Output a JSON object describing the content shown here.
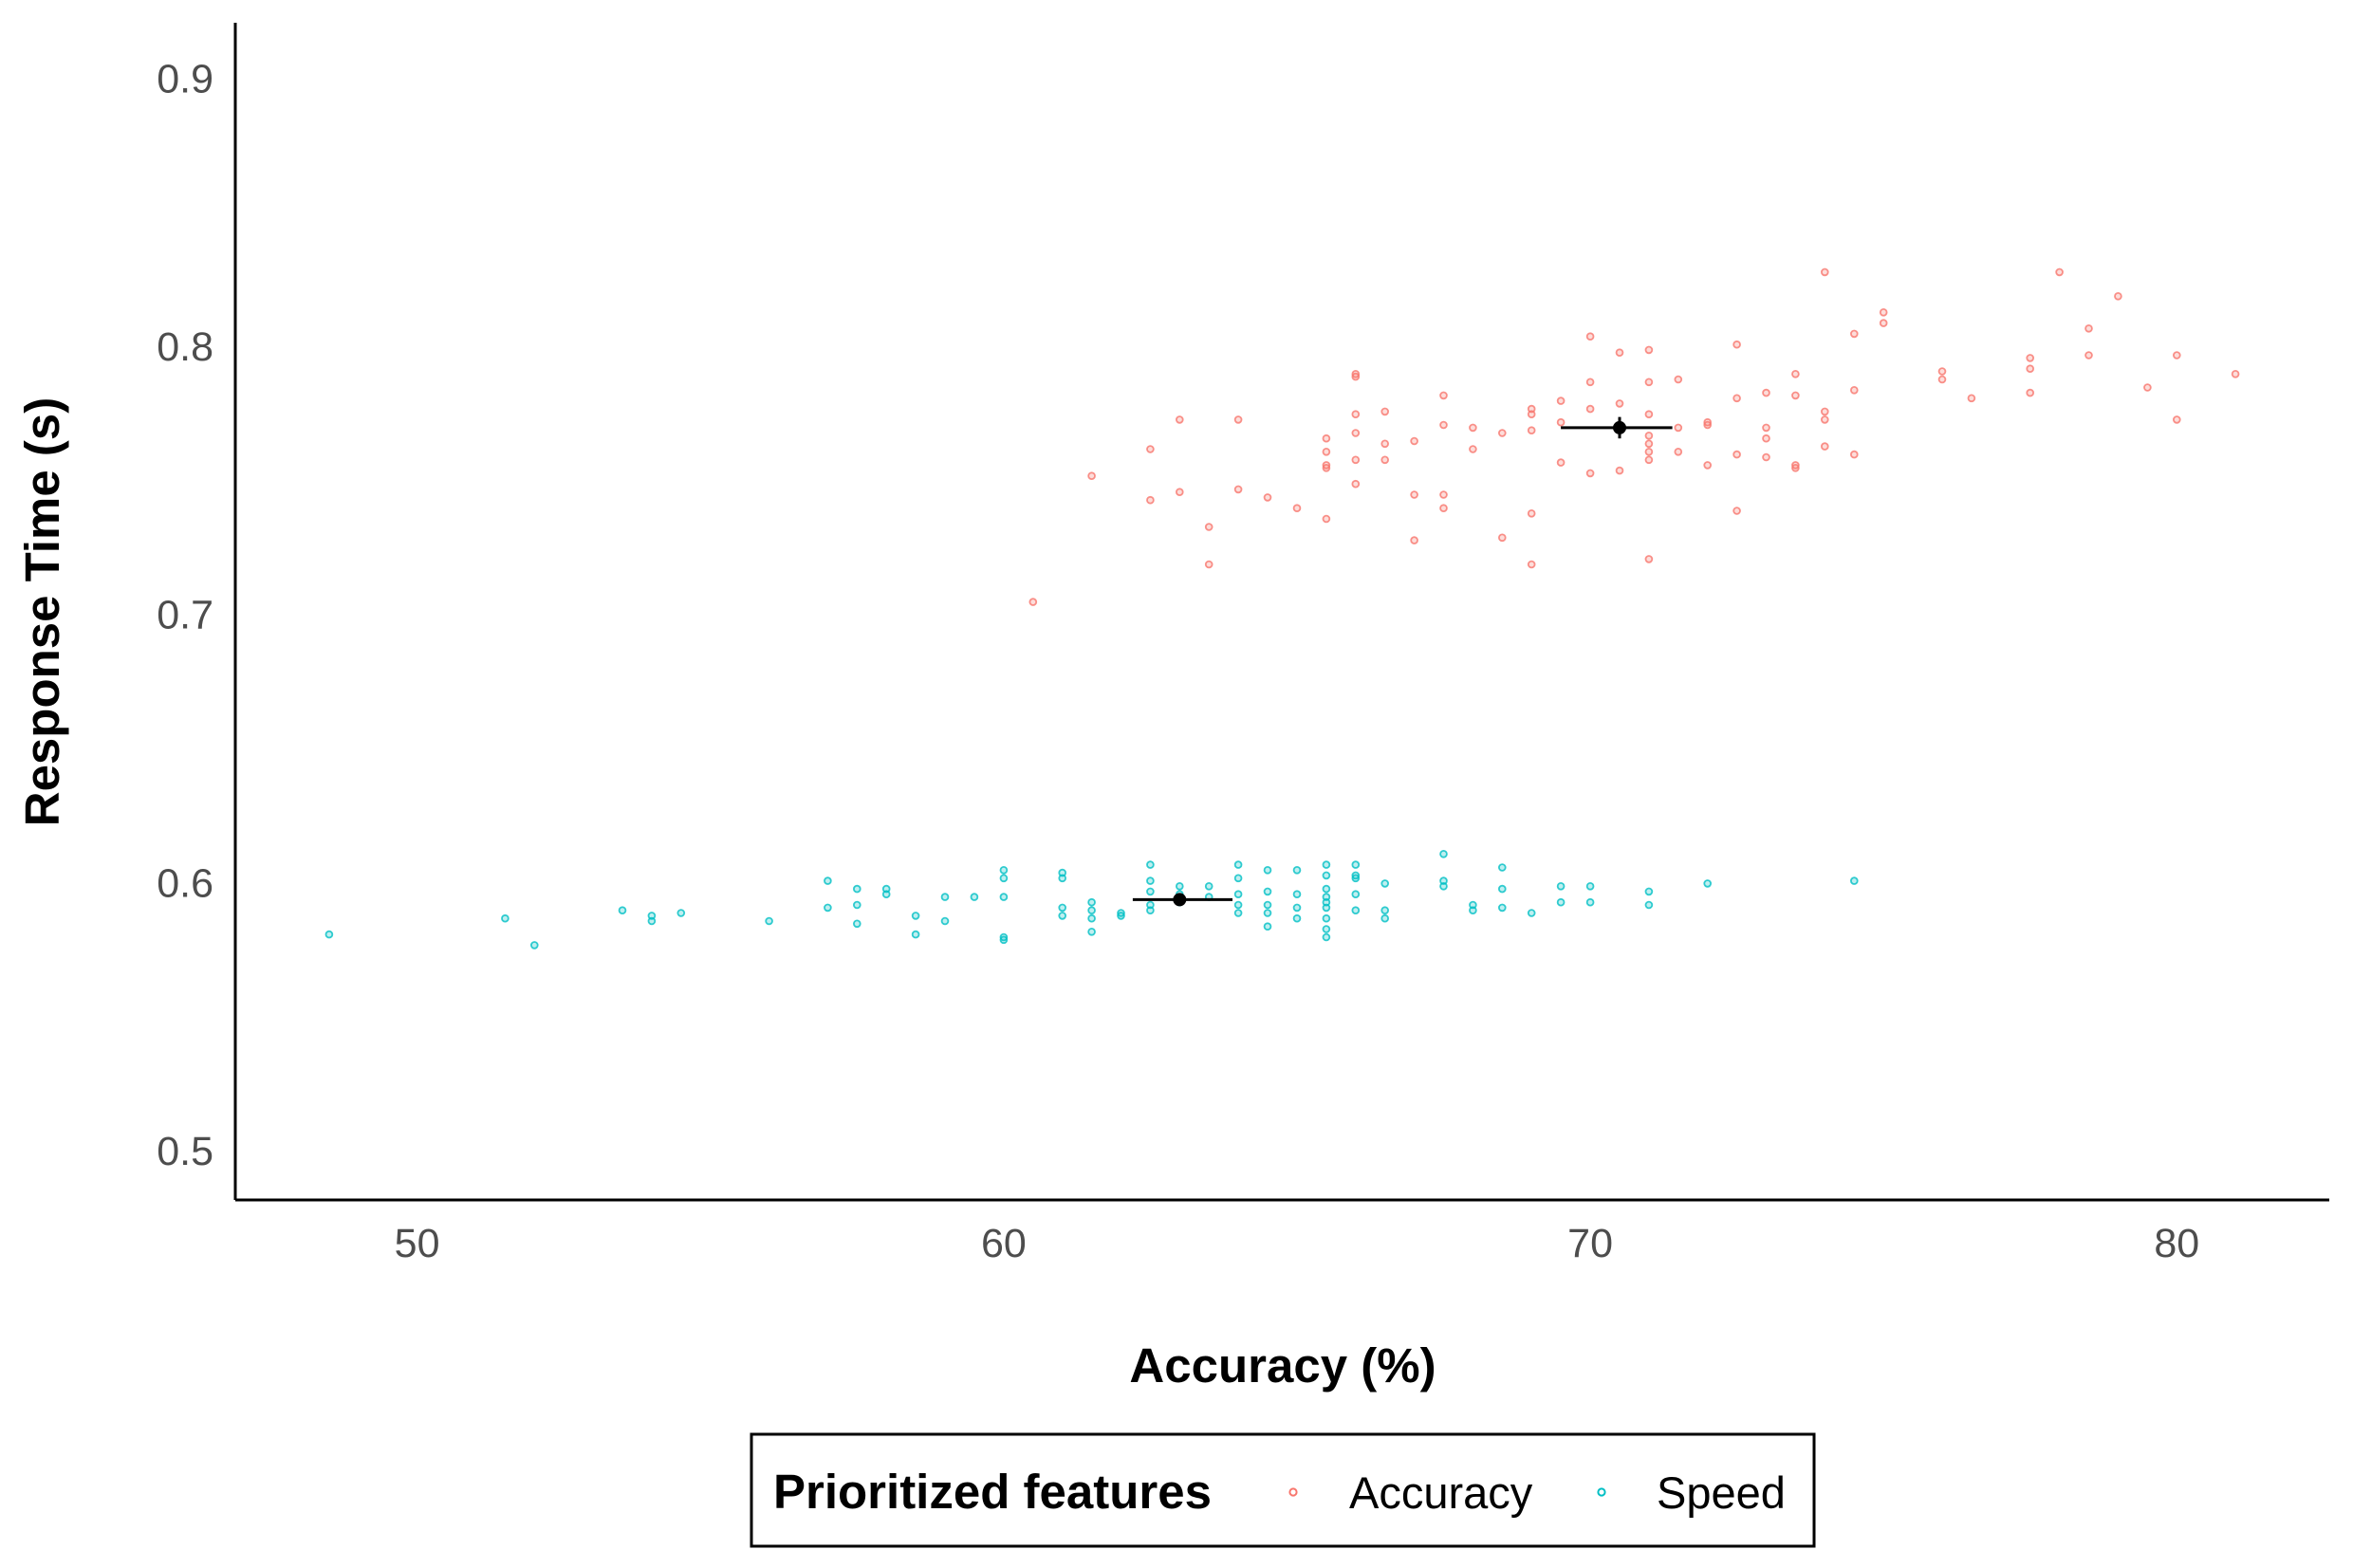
{
  "chart_data": {
    "type": "scatter",
    "xlabel": "Accuracy (%)",
    "ylabel": "Response Time (s)",
    "xlim": [
      46.9,
      82.6
    ],
    "ylim": [
      0.482,
      0.921
    ],
    "x_ticks": [
      50,
      60,
      70,
      80
    ],
    "y_ticks": [
      0.5,
      0.6,
      0.7,
      0.8,
      0.9
    ],
    "x_tick_labels": [
      "50",
      "60",
      "70",
      "80"
    ],
    "y_tick_labels": [
      "0.5",
      "0.6",
      "0.7",
      "0.8",
      "0.9"
    ],
    "grid": false,
    "legend": {
      "title": "Prioritized features",
      "placement": "bottom",
      "entries": [
        "Accuracy",
        "Speed"
      ]
    },
    "series": [
      {
        "name": "Accuracy",
        "color": "#F8766D",
        "points": [
          [
            60.5,
            0.705
          ],
          [
            61.5,
            0.752
          ],
          [
            62.5,
            0.762
          ],
          [
            62.5,
            0.743
          ],
          [
            63.0,
            0.773
          ],
          [
            63.0,
            0.746
          ],
          [
            63.5,
            0.733
          ],
          [
            63.5,
            0.719
          ],
          [
            64.0,
            0.773
          ],
          [
            64.0,
            0.747
          ],
          [
            64.5,
            0.744
          ],
          [
            65.0,
            0.74
          ],
          [
            65.5,
            0.766
          ],
          [
            65.5,
            0.761
          ],
          [
            65.5,
            0.756
          ],
          [
            65.5,
            0.755
          ],
          [
            65.5,
            0.736
          ],
          [
            66.0,
            0.79
          ],
          [
            66.0,
            0.789
          ],
          [
            66.0,
            0.775
          ],
          [
            66.0,
            0.768
          ],
          [
            66.0,
            0.758
          ],
          [
            66.0,
            0.749
          ],
          [
            66.5,
            0.776
          ],
          [
            66.5,
            0.764
          ],
          [
            66.5,
            0.758
          ],
          [
            67.0,
            0.765
          ],
          [
            67.0,
            0.745
          ],
          [
            67.0,
            0.728
          ],
          [
            67.5,
            0.782
          ],
          [
            67.5,
            0.771
          ],
          [
            67.5,
            0.745
          ],
          [
            67.5,
            0.74
          ],
          [
            68.0,
            0.77
          ],
          [
            68.0,
            0.762
          ],
          [
            68.5,
            0.768
          ],
          [
            68.5,
            0.729
          ],
          [
            69.0,
            0.777
          ],
          [
            69.0,
            0.775
          ],
          [
            69.0,
            0.769
          ],
          [
            69.0,
            0.738
          ],
          [
            69.0,
            0.719
          ],
          [
            69.5,
            0.78
          ],
          [
            69.5,
            0.772
          ],
          [
            69.5,
            0.757
          ],
          [
            70.0,
            0.804
          ],
          [
            70.0,
            0.787
          ],
          [
            70.0,
            0.777
          ],
          [
            70.0,
            0.753
          ],
          [
            70.5,
            0.798
          ],
          [
            70.5,
            0.779
          ],
          [
            70.5,
            0.754
          ],
          [
            71.0,
            0.799
          ],
          [
            71.0,
            0.787
          ],
          [
            71.0,
            0.775
          ],
          [
            71.0,
            0.767
          ],
          [
            71.0,
            0.764
          ],
          [
            71.0,
            0.761
          ],
          [
            71.0,
            0.758
          ],
          [
            71.0,
            0.721
          ],
          [
            71.5,
            0.788
          ],
          [
            71.5,
            0.77
          ],
          [
            71.5,
            0.761
          ],
          [
            72.0,
            0.772
          ],
          [
            72.0,
            0.771
          ],
          [
            72.0,
            0.756
          ],
          [
            72.5,
            0.801
          ],
          [
            72.5,
            0.781
          ],
          [
            72.5,
            0.76
          ],
          [
            72.5,
            0.739
          ],
          [
            73.0,
            0.783
          ],
          [
            73.0,
            0.77
          ],
          [
            73.0,
            0.766
          ],
          [
            73.0,
            0.759
          ],
          [
            73.5,
            0.79
          ],
          [
            73.5,
            0.782
          ],
          [
            73.5,
            0.756
          ],
          [
            73.5,
            0.755
          ],
          [
            74.0,
            0.828
          ],
          [
            74.0,
            0.776
          ],
          [
            74.0,
            0.773
          ],
          [
            74.0,
            0.763
          ],
          [
            74.5,
            0.805
          ],
          [
            74.5,
            0.784
          ],
          [
            74.5,
            0.76
          ],
          [
            75.0,
            0.813
          ],
          [
            75.0,
            0.809
          ],
          [
            76.0,
            0.791
          ],
          [
            76.0,
            0.788
          ],
          [
            76.5,
            0.781
          ],
          [
            77.5,
            0.796
          ],
          [
            77.5,
            0.792
          ],
          [
            77.5,
            0.783
          ],
          [
            78.0,
            0.828
          ],
          [
            78.5,
            0.807
          ],
          [
            78.5,
            0.797
          ],
          [
            79.0,
            0.819
          ],
          [
            79.5,
            0.785
          ],
          [
            80.0,
            0.797
          ],
          [
            80.0,
            0.773
          ],
          [
            81.0,
            0.79
          ]
        ],
        "mean": {
          "x": 70.5,
          "y": 0.77,
          "x_err": [
            69.5,
            71.4
          ],
          "y_err": [
            0.766,
            0.774
          ]
        }
      },
      {
        "name": "Speed",
        "color": "#00BFC4",
        "points": [
          [
            48.5,
            0.581
          ],
          [
            51.5,
            0.587
          ],
          [
            52.0,
            0.577
          ],
          [
            53.5,
            0.59
          ],
          [
            54.0,
            0.588
          ],
          [
            54.0,
            0.586
          ],
          [
            54.5,
            0.589
          ],
          [
            56.0,
            0.586
          ],
          [
            57.0,
            0.601
          ],
          [
            57.0,
            0.591
          ],
          [
            57.5,
            0.598
          ],
          [
            57.5,
            0.592
          ],
          [
            57.5,
            0.585
          ],
          [
            58.0,
            0.598
          ],
          [
            58.0,
            0.596
          ],
          [
            58.5,
            0.588
          ],
          [
            58.5,
            0.581
          ],
          [
            59.0,
            0.595
          ],
          [
            59.0,
            0.586
          ],
          [
            59.5,
            0.595
          ],
          [
            60.0,
            0.605
          ],
          [
            60.0,
            0.602
          ],
          [
            60.0,
            0.595
          ],
          [
            60.0,
            0.58
          ],
          [
            60.0,
            0.579
          ],
          [
            61.0,
            0.604
          ],
          [
            61.0,
            0.602
          ],
          [
            61.0,
            0.591
          ],
          [
            61.0,
            0.588
          ],
          [
            61.5,
            0.593
          ],
          [
            61.5,
            0.59
          ],
          [
            61.5,
            0.587
          ],
          [
            61.5,
            0.582
          ],
          [
            62.0,
            0.589
          ],
          [
            62.0,
            0.588
          ],
          [
            62.5,
            0.607
          ],
          [
            62.5,
            0.601
          ],
          [
            62.5,
            0.597
          ],
          [
            62.5,
            0.592
          ],
          [
            62.5,
            0.59
          ],
          [
            63.0,
            0.599
          ],
          [
            63.0,
            0.596
          ],
          [
            63.0,
            0.593
          ],
          [
            63.5,
            0.599
          ],
          [
            63.5,
            0.595
          ],
          [
            64.0,
            0.607
          ],
          [
            64.0,
            0.602
          ],
          [
            64.0,
            0.596
          ],
          [
            64.0,
            0.592
          ],
          [
            64.0,
            0.589
          ],
          [
            64.5,
            0.605
          ],
          [
            64.5,
            0.597
          ],
          [
            64.5,
            0.592
          ],
          [
            64.5,
            0.589
          ],
          [
            64.5,
            0.584
          ],
          [
            65.0,
            0.605
          ],
          [
            65.0,
            0.596
          ],
          [
            65.0,
            0.591
          ],
          [
            65.0,
            0.587
          ],
          [
            65.5,
            0.607
          ],
          [
            65.5,
            0.603
          ],
          [
            65.5,
            0.598
          ],
          [
            65.5,
            0.595
          ],
          [
            65.5,
            0.593
          ],
          [
            65.5,
            0.591
          ],
          [
            65.5,
            0.587
          ],
          [
            65.5,
            0.583
          ],
          [
            65.5,
            0.58
          ],
          [
            66.0,
            0.607
          ],
          [
            66.0,
            0.603
          ],
          [
            66.0,
            0.602
          ],
          [
            66.0,
            0.596
          ],
          [
            66.0,
            0.59
          ],
          [
            66.5,
            0.6
          ],
          [
            66.5,
            0.59
          ],
          [
            66.5,
            0.587
          ],
          [
            67.5,
            0.611
          ],
          [
            67.5,
            0.601
          ],
          [
            67.5,
            0.599
          ],
          [
            68.0,
            0.592
          ],
          [
            68.0,
            0.59
          ],
          [
            68.5,
            0.606
          ],
          [
            68.5,
            0.598
          ],
          [
            68.5,
            0.591
          ],
          [
            69.0,
            0.589
          ],
          [
            69.5,
            0.599
          ],
          [
            69.5,
            0.593
          ],
          [
            70.0,
            0.599
          ],
          [
            70.0,
            0.593
          ],
          [
            71.0,
            0.597
          ],
          [
            71.0,
            0.592
          ],
          [
            72.0,
            0.6
          ],
          [
            74.5,
            0.601
          ]
        ],
        "mean": {
          "x": 63.0,
          "y": 0.594,
          "x_err": [
            62.2,
            63.9
          ],
          "y_err": [
            0.592,
            0.596
          ]
        }
      }
    ]
  }
}
